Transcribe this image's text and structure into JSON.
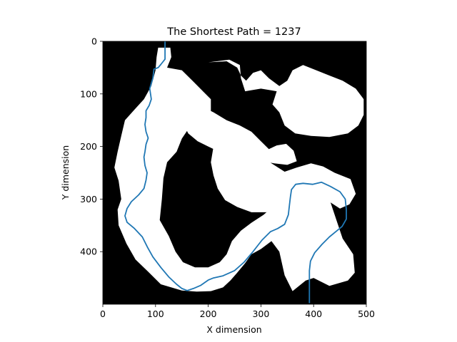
{
  "chart_data": {
    "type": "line",
    "title": "The Shortest Path = 1237",
    "xlabel": "X dimension",
    "ylabel": "Y dimension",
    "xlim": [
      0,
      500
    ],
    "ylim": [
      500,
      0
    ],
    "y_axis_inverted": true,
    "grid": false,
    "xticks": [
      0,
      100,
      200,
      300,
      400,
      500
    ],
    "yticks": [
      0,
      100,
      200,
      300,
      400
    ],
    "background": "occupancy map (black = obstacle, white = free space)",
    "free_regions": [
      {
        "name": "left-corridor",
        "points": [
          [
            105,
            12
          ],
          [
            128,
            12
          ],
          [
            130,
            30
          ],
          [
            122,
            50
          ],
          [
            150,
            55
          ],
          [
            170,
            75
          ],
          [
            190,
            95
          ],
          [
            205,
            110
          ],
          [
            205,
            150
          ],
          [
            180,
            160
          ],
          [
            160,
            170
          ],
          [
            150,
            185
          ],
          [
            140,
            210
          ],
          [
            122,
            230
          ],
          [
            115,
            260
          ],
          [
            112,
            300
          ],
          [
            108,
            340
          ],
          [
            125,
            370
          ],
          [
            138,
            400
          ],
          [
            152,
            420
          ],
          [
            175,
            430
          ],
          [
            200,
            430
          ],
          [
            222,
            420
          ],
          [
            235,
            405
          ],
          [
            245,
            380
          ],
          [
            262,
            360
          ],
          [
            282,
            345
          ],
          [
            305,
            330
          ],
          [
            322,
            315
          ],
          [
            335,
            295
          ],
          [
            340,
            270
          ],
          [
            355,
            255
          ],
          [
            385,
            258
          ],
          [
            410,
            270
          ],
          [
            430,
            300
          ],
          [
            445,
            345
          ],
          [
            455,
            375
          ],
          [
            475,
            405
          ],
          [
            478,
            440
          ],
          [
            465,
            455
          ],
          [
            430,
            465
          ],
          [
            400,
            450
          ],
          [
            385,
            455
          ],
          [
            360,
            475
          ],
          [
            345,
            445
          ],
          [
            335,
            400
          ],
          [
            320,
            380
          ],
          [
            300,
            395
          ],
          [
            282,
            405
          ],
          [
            270,
            422
          ],
          [
            255,
            440
          ],
          [
            242,
            455
          ],
          [
            228,
            468
          ],
          [
            205,
            475
          ],
          [
            178,
            476
          ],
          [
            150,
            474
          ],
          [
            110,
            462
          ],
          [
            88,
            440
          ],
          [
            62,
            415
          ],
          [
            45,
            385
          ],
          [
            30,
            350
          ],
          [
            28,
            320
          ],
          [
            35,
            300
          ],
          [
            30,
            265
          ],
          [
            22,
            240
          ],
          [
            28,
            210
          ],
          [
            35,
            180
          ],
          [
            42,
            150
          ],
          [
            60,
            130
          ],
          [
            78,
            110
          ],
          [
            92,
            85
          ],
          [
            100,
            55
          ],
          [
            102,
            30
          ]
        ]
      },
      {
        "name": "top-right-blob",
        "points": [
          [
            200,
            40
          ],
          [
            240,
            35
          ],
          [
            260,
            45
          ],
          [
            262,
            70
          ],
          [
            270,
            95
          ],
          [
            300,
            90
          ],
          [
            330,
            95
          ],
          [
            322,
            120
          ],
          [
            335,
            135
          ],
          [
            345,
            160
          ],
          [
            365,
            175
          ],
          [
            395,
            180
          ],
          [
            430,
            182
          ],
          [
            465,
            175
          ],
          [
            485,
            160
          ],
          [
            495,
            140
          ],
          [
            495,
            110
          ],
          [
            480,
            90
          ],
          [
            455,
            75
          ],
          [
            430,
            65
          ],
          [
            405,
            55
          ],
          [
            380,
            45
          ],
          [
            360,
            55
          ],
          [
            350,
            75
          ],
          [
            335,
            85
          ],
          [
            315,
            70
          ],
          [
            300,
            55
          ],
          [
            285,
            60
          ],
          [
            272,
            75
          ],
          [
            262,
            65
          ],
          [
            255,
            50
          ],
          [
            235,
            38
          ]
        ]
      },
      {
        "name": "center-blob",
        "points": [
          [
            210,
            200
          ],
          [
            245,
            180
          ],
          [
            270,
            190
          ],
          [
            295,
            215
          ],
          [
            320,
            232
          ],
          [
            345,
            248
          ],
          [
            368,
            240
          ],
          [
            395,
            232
          ],
          [
            418,
            238
          ],
          [
            440,
            250
          ],
          [
            470,
            262
          ],
          [
            480,
            290
          ],
          [
            468,
            310
          ],
          [
            450,
            318
          ],
          [
            430,
            305
          ],
          [
            408,
            295
          ],
          [
            385,
            290
          ],
          [
            360,
            300
          ],
          [
            340,
            318
          ],
          [
            310,
            325
          ],
          [
            282,
            325
          ],
          [
            255,
            315
          ],
          [
            232,
            302
          ],
          [
            218,
            280
          ],
          [
            210,
            255
          ],
          [
            205,
            230
          ]
        ]
      },
      {
        "name": "upper-middle-blob",
        "points": [
          [
            150,
            130
          ],
          [
            180,
            120
          ],
          [
            210,
            135
          ],
          [
            235,
            150
          ],
          [
            260,
            160
          ],
          [
            282,
            172
          ],
          [
            300,
            190
          ],
          [
            315,
            205
          ],
          [
            330,
            198
          ],
          [
            348,
            195
          ],
          [
            362,
            208
          ],
          [
            368,
            228
          ],
          [
            350,
            235
          ],
          [
            325,
            232
          ],
          [
            300,
            228
          ],
          [
            275,
            222
          ],
          [
            250,
            218
          ],
          [
            225,
            212
          ],
          [
            200,
            200
          ],
          [
            180,
            190
          ],
          [
            162,
            175
          ],
          [
            152,
            155
          ]
        ]
      }
    ],
    "series": [
      {
        "color": "#1f77b4",
        "points": [
          [
            118,
            0
          ],
          [
            118,
            34
          ],
          [
            110,
            44
          ],
          [
            105,
            50
          ],
          [
            97,
            53
          ],
          [
            95,
            70
          ],
          [
            92,
            80
          ],
          [
            89,
            90
          ],
          [
            92,
            110
          ],
          [
            88,
            122
          ],
          [
            82,
            132
          ],
          [
            82,
            145
          ],
          [
            80,
            158
          ],
          [
            82,
            172
          ],
          [
            86,
            184
          ],
          [
            82,
            196
          ],
          [
            80,
            210
          ],
          [
            78,
            220
          ],
          [
            80,
            236
          ],
          [
            84,
            250
          ],
          [
            82,
            264
          ],
          [
            78,
            280
          ],
          [
            68,
            292
          ],
          [
            54,
            305
          ],
          [
            46,
            318
          ],
          [
            42,
            332
          ],
          [
            46,
            344
          ],
          [
            60,
            356
          ],
          [
            75,
            372
          ],
          [
            85,
            392
          ],
          [
            95,
            410
          ],
          [
            110,
            430
          ],
          [
            125,
            448
          ],
          [
            140,
            462
          ],
          [
            150,
            470
          ],
          [
            160,
            474
          ],
          [
            172,
            470
          ],
          [
            186,
            464
          ],
          [
            200,
            454
          ],
          [
            210,
            450
          ],
          [
            228,
            446
          ],
          [
            250,
            436
          ],
          [
            268,
            420
          ],
          [
            285,
            400
          ],
          [
            302,
            378
          ],
          [
            318,
            362
          ],
          [
            332,
            356
          ],
          [
            345,
            348
          ],
          [
            352,
            330
          ],
          [
            354,
            312
          ],
          [
            356,
            296
          ],
          [
            358,
            282
          ],
          [
            366,
            272
          ],
          [
            380,
            270
          ],
          [
            398,
            272
          ],
          [
            415,
            268
          ],
          [
            432,
            276
          ],
          [
            450,
            286
          ],
          [
            460,
            300
          ],
          [
            462,
            320
          ],
          [
            462,
            338
          ],
          [
            454,
            352
          ],
          [
            442,
            362
          ],
          [
            430,
            372
          ],
          [
            416,
            386
          ],
          [
            402,
            402
          ],
          [
            394,
            418
          ],
          [
            392,
            436
          ],
          [
            392,
            468
          ],
          [
            392,
            498
          ]
        ]
      }
    ]
  }
}
